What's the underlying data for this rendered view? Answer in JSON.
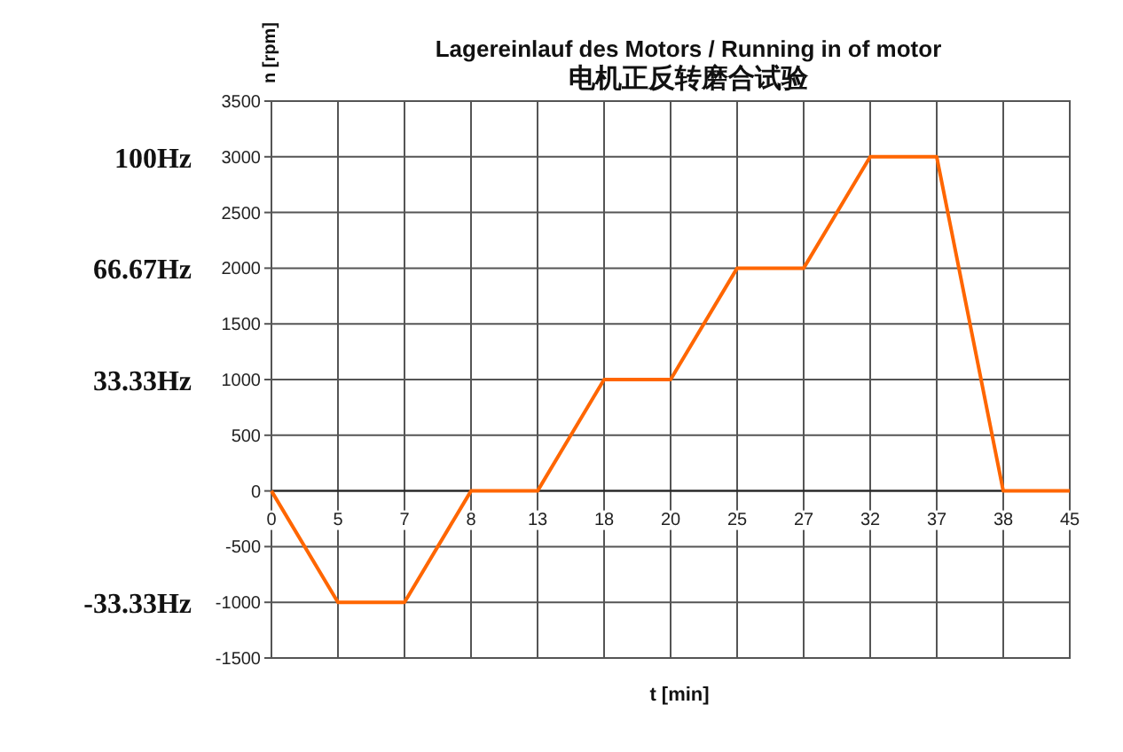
{
  "chart_data": {
    "type": "line",
    "title": "Lagereinlauf des Motors / Running in of motor",
    "subtitle": "电机正反转磨合试验",
    "xlabel": "t [min]",
    "ylabel": "n [rpm]",
    "categories": [
      "0",
      "5",
      "7",
      "8",
      "13",
      "18",
      "20",
      "25",
      "27",
      "32",
      "37",
      "38",
      "45"
    ],
    "series": [
      {
        "color": "#ff6600",
        "values": [
          0,
          -1000,
          -1000,
          0,
          0,
          1000,
          1000,
          2000,
          2000,
          3000,
          3000,
          0,
          0
        ]
      }
    ],
    "ylim": [
      -1500,
      3500
    ],
    "yticks": [
      -1500,
      -1000,
      -500,
      0,
      500,
      1000,
      1500,
      2000,
      2500,
      3000,
      3500
    ],
    "grid": true,
    "marker": "none",
    "line_style": "solid",
    "y2lim": [
      -50,
      116.67
    ],
    "y2ticks": [
      {
        "value": 100,
        "label": "100Hz"
      },
      {
        "value": 66.67,
        "label": "66.67Hz"
      },
      {
        "value": 33.33,
        "label": "33.33Hz"
      },
      {
        "value": -33.33,
        "label": "-33.33Hz"
      }
    ]
  }
}
